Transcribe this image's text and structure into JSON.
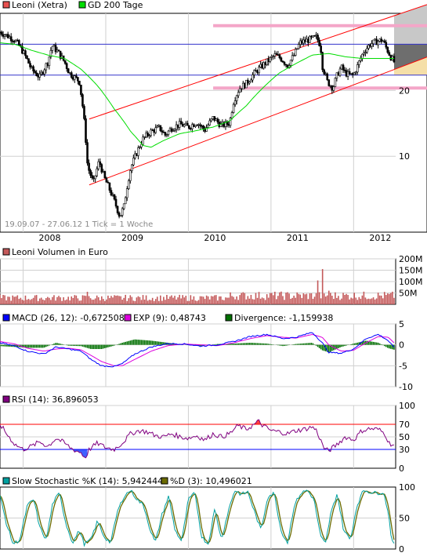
{
  "colors": {
    "price": "#e8504f",
    "sma": "#00dd00",
    "volume": "#c4595a",
    "macd": "#0000ff",
    "exp": "#dd00dd",
    "divergence": "#007000",
    "rsi": "#800080",
    "stoch_k": "#00a0a0",
    "stoch_d": "#6b6b00",
    "channel": "#ff0000",
    "level": "#3333cc",
    "pink": "#f4a6c8",
    "grid": "#d0d0d0"
  },
  "chart_data": [
    {
      "id": "price",
      "type": "candlestick",
      "legend": [
        {
          "name": "Leoni (Xetra)",
          "icon": "red-square"
        },
        {
          "name": "GD 200 Tage",
          "icon": "green-square"
        }
      ],
      "info": "19.09.07 - 27.06.12   1 Tick = 1 Woche",
      "x_labels": [
        "2008",
        "2009",
        "2010",
        "2011",
        "2012"
      ],
      "y_scale": "log",
      "y_ticks": [
        10,
        20
      ],
      "ylim": [
        4.5,
        45
      ],
      "close_anchors": [
        [
          2007.72,
          37
        ],
        [
          2007.9,
          34
        ],
        [
          2008.0,
          30
        ],
        [
          2008.1,
          25
        ],
        [
          2008.2,
          23
        ],
        [
          2008.3,
          27
        ],
        [
          2008.35,
          32
        ],
        [
          2008.42,
          30
        ],
        [
          2008.5,
          27
        ],
        [
          2008.56,
          24
        ],
        [
          2008.62,
          23
        ],
        [
          2008.68,
          22
        ],
        [
          2008.72,
          17
        ],
        [
          2008.78,
          9
        ],
        [
          2008.85,
          7.5
        ],
        [
          2008.92,
          9.5
        ],
        [
          2008.98,
          8
        ],
        [
          2009.05,
          7
        ],
        [
          2009.12,
          6
        ],
        [
          2009.17,
          5.3
        ],
        [
          2009.22,
          5.9
        ],
        [
          2009.3,
          8.8
        ],
        [
          2009.38,
          10.5
        ],
        [
          2009.45,
          12
        ],
        [
          2009.55,
          13
        ],
        [
          2009.65,
          13.5
        ],
        [
          2009.72,
          12.5
        ],
        [
          2009.8,
          13.5
        ],
        [
          2009.9,
          14
        ],
        [
          2010.0,
          13.6
        ],
        [
          2010.1,
          14.3
        ],
        [
          2010.2,
          13.2
        ],
        [
          2010.3,
          15
        ],
        [
          2010.4,
          13.8
        ],
        [
          2010.5,
          14.2
        ],
        [
          2010.55,
          18
        ],
        [
          2010.62,
          20.5
        ],
        [
          2010.7,
          21.5
        ],
        [
          2010.8,
          24
        ],
        [
          2010.9,
          26
        ],
        [
          2011.0,
          28
        ],
        [
          2011.05,
          29
        ],
        [
          2011.12,
          28
        ],
        [
          2011.2,
          26
        ],
        [
          2011.28,
          29
        ],
        [
          2011.35,
          33
        ],
        [
          2011.45,
          34
        ],
        [
          2011.55,
          35
        ],
        [
          2011.6,
          32
        ],
        [
          2011.62,
          26
        ],
        [
          2011.68,
          22
        ],
        [
          2011.75,
          20.5
        ],
        [
          2011.8,
          23.5
        ],
        [
          2011.85,
          25.5
        ],
        [
          2011.9,
          24
        ],
        [
          2011.95,
          23.5
        ],
        [
          2012.0,
          23.5
        ],
        [
          2012.05,
          26
        ],
        [
          2012.12,
          30
        ],
        [
          2012.2,
          32.5
        ],
        [
          2012.28,
          33.5
        ],
        [
          2012.35,
          34
        ],
        [
          2012.4,
          31
        ],
        [
          2012.45,
          28.5
        ],
        [
          2012.49,
          27
        ]
      ],
      "sma_anchors": [
        [
          2007.72,
          33
        ],
        [
          2007.9,
          32.5
        ],
        [
          2008.1,
          30.5
        ],
        [
          2008.3,
          29
        ],
        [
          2008.5,
          28
        ],
        [
          2008.7,
          25
        ],
        [
          2008.9,
          21
        ],
        [
          2009.1,
          16.5
        ],
        [
          2009.3,
          13
        ],
        [
          2009.45,
          11.2
        ],
        [
          2009.55,
          11
        ],
        [
          2009.7,
          11.8
        ],
        [
          2009.9,
          12.7
        ],
        [
          2010.1,
          13.1
        ],
        [
          2010.3,
          13.6
        ],
        [
          2010.5,
          14.5
        ],
        [
          2010.7,
          17
        ],
        [
          2010.9,
          20.5
        ],
        [
          2011.1,
          24
        ],
        [
          2011.3,
          26.5
        ],
        [
          2011.5,
          29
        ],
        [
          2011.7,
          29.5
        ],
        [
          2011.9,
          28.5
        ],
        [
          2012.1,
          28
        ],
        [
          2012.3,
          28
        ],
        [
          2012.49,
          28
        ]
      ],
      "levels": [
        {
          "kind": "blue",
          "value": 32.5
        },
        {
          "kind": "blue",
          "value": 23.5
        },
        {
          "kind": "pink",
          "value": 39.5,
          "x_from": 2010.3
        },
        {
          "kind": "pink",
          "value": 20.5,
          "x_from": 2010.3
        }
      ],
      "channel": {
        "upper": [
          [
            2008.8,
            14.8
          ],
          [
            2012.5,
            44
          ]
        ],
        "lower": [
          [
            2008.8,
            7.4
          ],
          [
            2012.5,
            25
          ]
        ]
      }
    },
    {
      "id": "volume",
      "type": "bar",
      "legend": [
        {
          "name": "Leoni Volumen in Euro",
          "icon": "red-square"
        }
      ],
      "y_ticks": [
        50,
        100,
        150,
        200
      ],
      "y_tick_labels": [
        "50M",
        "100M",
        "150M",
        "200M"
      ],
      "ylim": [
        0,
        200
      ],
      "typical": 28,
      "spikes": [
        [
          2011.62,
          155
        ],
        [
          2011.57,
          105
        ],
        [
          2008.78,
          55
        ],
        [
          2011.7,
          60
        ]
      ]
    },
    {
      "id": "macd",
      "type": "line",
      "legend": [
        {
          "name": "MACD (26, 12): -0,672508",
          "icon": "blue-square"
        },
        {
          "name": "EXP (9): 0,48743",
          "icon": "magenta-square"
        },
        {
          "name": "Divergence: -1,159938",
          "icon": "green-square"
        }
      ],
      "y_ticks": [
        -10,
        -5,
        0,
        5
      ],
      "ylim": [
        -10,
        5
      ],
      "macd_anchors": [
        [
          2007.72,
          0.5
        ],
        [
          2007.9,
          -0.3
        ],
        [
          2008.05,
          -1.5
        ],
        [
          2008.25,
          -2.2
        ],
        [
          2008.4,
          -0.5
        ],
        [
          2008.55,
          -1
        ],
        [
          2008.7,
          -1.5
        ],
        [
          2008.82,
          -3.5
        ],
        [
          2008.95,
          -5
        ],
        [
          2009.1,
          -5.2
        ],
        [
          2009.2,
          -4.5
        ],
        [
          2009.35,
          -2.2
        ],
        [
          2009.55,
          -0.5
        ],
        [
          2009.75,
          0.3
        ],
        [
          2009.95,
          0.2
        ],
        [
          2010.15,
          -0.3
        ],
        [
          2010.35,
          0
        ],
        [
          2010.55,
          0.8
        ],
        [
          2010.75,
          2
        ],
        [
          2010.95,
          2.5
        ],
        [
          2011.15,
          1.5
        ],
        [
          2011.3,
          1.8
        ],
        [
          2011.5,
          3
        ],
        [
          2011.62,
          0.5
        ],
        [
          2011.7,
          -1.8
        ],
        [
          2011.85,
          -2
        ],
        [
          2012.0,
          -1
        ],
        [
          2012.15,
          1.5
        ],
        [
          2012.3,
          2.5
        ],
        [
          2012.42,
          1
        ],
        [
          2012.49,
          -0.67
        ]
      ],
      "exp_anchors": [
        [
          2007.72,
          0.8
        ],
        [
          2007.9,
          0.2
        ],
        [
          2008.05,
          -0.8
        ],
        [
          2008.25,
          -1.5
        ],
        [
          2008.4,
          -1
        ],
        [
          2008.55,
          -0.8
        ],
        [
          2008.7,
          -1.2
        ],
        [
          2008.82,
          -2.5
        ],
        [
          2008.95,
          -4
        ],
        [
          2009.1,
          -5
        ],
        [
          2009.2,
          -5
        ],
        [
          2009.35,
          -3.5
        ],
        [
          2009.55,
          -1.5
        ],
        [
          2009.75,
          -0.2
        ],
        [
          2009.95,
          0.2
        ],
        [
          2010.15,
          0
        ],
        [
          2010.35,
          -0.2
        ],
        [
          2010.55,
          0.5
        ],
        [
          2010.75,
          1.5
        ],
        [
          2010.95,
          2.2
        ],
        [
          2011.15,
          1.8
        ],
        [
          2011.3,
          1.6
        ],
        [
          2011.5,
          2.5
        ],
        [
          2011.62,
          1.8
        ],
        [
          2011.7,
          0
        ],
        [
          2011.85,
          -1.5
        ],
        [
          2012.0,
          -1.3
        ],
        [
          2012.15,
          0.5
        ],
        [
          2012.3,
          2
        ],
        [
          2012.42,
          1.8
        ],
        [
          2012.49,
          0.49
        ]
      ]
    },
    {
      "id": "rsi",
      "type": "line",
      "legend": [
        {
          "name": "RSI (14): 36,896053",
          "icon": "purple-square"
        }
      ],
      "y_ticks": [
        0,
        30,
        50,
        70,
        100
      ],
      "ylim": [
        0,
        100
      ],
      "levels": [
        30,
        70
      ],
      "anchors": [
        [
          2007.72,
          70
        ],
        [
          2007.8,
          55
        ],
        [
          2007.9,
          38
        ],
        [
          2008.0,
          30
        ],
        [
          2008.1,
          35
        ],
        [
          2008.2,
          42
        ],
        [
          2008.3,
          35
        ],
        [
          2008.4,
          48
        ],
        [
          2008.5,
          40
        ],
        [
          2008.6,
          30
        ],
        [
          2008.7,
          25
        ],
        [
          2008.75,
          16
        ],
        [
          2008.8,
          30
        ],
        [
          2008.9,
          40
        ],
        [
          2009.0,
          33
        ],
        [
          2009.1,
          30
        ],
        [
          2009.2,
          40
        ],
        [
          2009.3,
          55
        ],
        [
          2009.4,
          60
        ],
        [
          2009.5,
          58
        ],
        [
          2009.6,
          52
        ],
        [
          2009.7,
          50
        ],
        [
          2009.8,
          55
        ],
        [
          2009.9,
          50
        ],
        [
          2010.0,
          48
        ],
        [
          2010.1,
          52
        ],
        [
          2010.2,
          45
        ],
        [
          2010.3,
          55
        ],
        [
          2010.4,
          50
        ],
        [
          2010.5,
          55
        ],
        [
          2010.6,
          68
        ],
        [
          2010.7,
          62
        ],
        [
          2010.8,
          70
        ],
        [
          2010.85,
          75
        ],
        [
          2010.9,
          68
        ],
        [
          2011.0,
          60
        ],
        [
          2011.1,
          58
        ],
        [
          2011.2,
          55
        ],
        [
          2011.3,
          60
        ],
        [
          2011.4,
          62
        ],
        [
          2011.5,
          66
        ],
        [
          2011.55,
          60
        ],
        [
          2011.6,
          45
        ],
        [
          2011.65,
          30
        ],
        [
          2011.7,
          28
        ],
        [
          2011.8,
          38
        ],
        [
          2011.9,
          50
        ],
        [
          2012.0,
          45
        ],
        [
          2012.1,
          60
        ],
        [
          2012.2,
          63
        ],
        [
          2012.3,
          62
        ],
        [
          2012.38,
          55
        ],
        [
          2012.43,
          40
        ],
        [
          2012.49,
          37
        ]
      ]
    },
    {
      "id": "stochastic",
      "type": "line",
      "legend": [
        {
          "name": "Slow Stochastic %K (14): 5,942444",
          "icon": "teal-square"
        },
        {
          "name": "%D (3): 10,496021",
          "icon": "olive-square"
        }
      ],
      "y_ticks": [
        0,
        50,
        100
      ],
      "ylim": [
        0,
        100
      ],
      "anchors": [
        [
          2007.72,
          85
        ],
        [
          2007.8,
          40
        ],
        [
          2007.88,
          8
        ],
        [
          2007.96,
          15
        ],
        [
          2008.05,
          70
        ],
        [
          2008.13,
          80
        ],
        [
          2008.2,
          35
        ],
        [
          2008.28,
          15
        ],
        [
          2008.36,
          75
        ],
        [
          2008.44,
          90
        ],
        [
          2008.52,
          40
        ],
        [
          2008.6,
          10
        ],
        [
          2008.68,
          30
        ],
        [
          2008.74,
          8
        ],
        [
          2008.82,
          15
        ],
        [
          2008.9,
          45
        ],
        [
          2008.98,
          20
        ],
        [
          2009.06,
          10
        ],
        [
          2009.14,
          60
        ],
        [
          2009.22,
          85
        ],
        [
          2009.3,
          95
        ],
        [
          2009.38,
          80
        ],
        [
          2009.46,
          70
        ],
        [
          2009.54,
          30
        ],
        [
          2009.6,
          10
        ],
        [
          2009.68,
          55
        ],
        [
          2009.76,
          85
        ],
        [
          2009.84,
          30
        ],
        [
          2009.92,
          12
        ],
        [
          2010.0,
          80
        ],
        [
          2010.08,
          90
        ],
        [
          2010.16,
          20
        ],
        [
          2010.24,
          8
        ],
        [
          2010.32,
          65
        ],
        [
          2010.4,
          15
        ],
        [
          2010.48,
          60
        ],
        [
          2010.56,
          95
        ],
        [
          2010.64,
          88
        ],
        [
          2010.72,
          92
        ],
        [
          2010.8,
          60
        ],
        [
          2010.88,
          30
        ],
        [
          2010.96,
          85
        ],
        [
          2011.04,
          90
        ],
        [
          2011.12,
          30
        ],
        [
          2011.2,
          10
        ],
        [
          2011.28,
          70
        ],
        [
          2011.36,
          90
        ],
        [
          2011.44,
          95
        ],
        [
          2011.52,
          80
        ],
        [
          2011.6,
          20
        ],
        [
          2011.66,
          8
        ],
        [
          2011.72,
          55
        ],
        [
          2011.8,
          90
        ],
        [
          2011.88,
          30
        ],
        [
          2011.96,
          15
        ],
        [
          2012.04,
          70
        ],
        [
          2012.12,
          95
        ],
        [
          2012.2,
          92
        ],
        [
          2012.28,
          90
        ],
        [
          2012.36,
          92
        ],
        [
          2012.42,
          60
        ],
        [
          2012.46,
          15
        ],
        [
          2012.49,
          6
        ]
      ]
    }
  ]
}
